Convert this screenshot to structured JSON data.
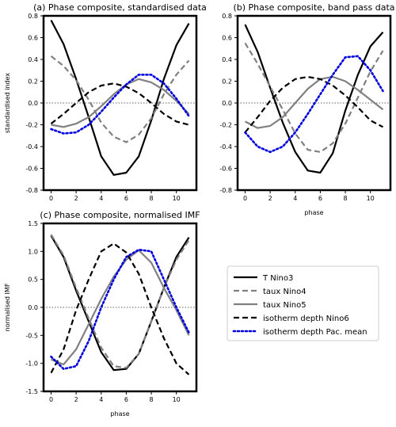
{
  "chart_data": [
    {
      "type": "line",
      "title": "(a) Phase composite, standardised data",
      "xlabel": "",
      "ylabel": "standardised index",
      "xlim": [
        -0.6,
        11.6
      ],
      "ylim": [
        -0.8,
        0.8
      ],
      "xticks": [
        0,
        2,
        4,
        6,
        8,
        10
      ],
      "yticks": [
        -0.8,
        -0.6,
        -0.4,
        -0.2,
        0.0,
        0.2,
        0.4,
        0.6,
        0.8
      ],
      "x": [
        0,
        1,
        2,
        3,
        4,
        5,
        6,
        7,
        8,
        9,
        10,
        11
      ],
      "series": [
        {
          "name": "T Nino3",
          "color": "#000000",
          "dash": "solid",
          "values": [
            0.76,
            0.54,
            0.22,
            -0.13,
            -0.49,
            -0.66,
            -0.64,
            -0.49,
            -0.16,
            0.22,
            0.53,
            0.73
          ]
        },
        {
          "name": "taux Nino4",
          "color": "#808080",
          "dash": "dashed",
          "values": [
            0.43,
            0.34,
            0.21,
            0.03,
            -0.18,
            -0.31,
            -0.36,
            -0.29,
            -0.14,
            0.08,
            0.26,
            0.39
          ]
        },
        {
          "name": "taux Nino5",
          "color": "#808080",
          "dash": "solid",
          "values": [
            -0.2,
            -0.22,
            -0.19,
            -0.13,
            -0.03,
            0.08,
            0.17,
            0.22,
            0.19,
            0.12,
            0.02,
            -0.1
          ]
        },
        {
          "name": "isotherm depth Nino6",
          "color": "#000000",
          "dash": "dashed",
          "values": [
            -0.19,
            -0.1,
            0.0,
            0.1,
            0.16,
            0.18,
            0.15,
            0.09,
            0.0,
            -0.1,
            -0.17,
            -0.2
          ]
        },
        {
          "name": "isotherm depth Pac. mean",
          "color": "#0000dd",
          "dash": "dotted",
          "values": [
            -0.24,
            -0.28,
            -0.27,
            -0.2,
            -0.08,
            0.05,
            0.17,
            0.26,
            0.26,
            0.18,
            0.04,
            -0.12
          ]
        }
      ]
    },
    {
      "type": "line",
      "title": "(b) Phase composite, band pass data",
      "xlabel": "phase",
      "ylabel": "",
      "xlim": [
        -0.6,
        11.6
      ],
      "ylim": [
        -0.8,
        0.8
      ],
      "xticks": [
        0,
        2,
        4,
        6,
        8,
        10
      ],
      "yticks": [
        -0.8,
        -0.6,
        -0.4,
        -0.2,
        0.0,
        0.2,
        0.4,
        0.6,
        0.8
      ],
      "x": [
        0,
        1,
        2,
        3,
        4,
        5,
        6,
        7,
        8,
        9,
        10,
        11
      ],
      "series": [
        {
          "name": "T Nino3",
          "color": "#000000",
          "dash": "solid",
          "values": [
            0.72,
            0.47,
            0.14,
            -0.18,
            -0.45,
            -0.62,
            -0.64,
            -0.46,
            -0.07,
            0.26,
            0.52,
            0.65
          ]
        },
        {
          "name": "taux Nino4",
          "color": "#808080",
          "dash": "dashed",
          "values": [
            0.55,
            0.36,
            0.15,
            -0.06,
            -0.28,
            -0.43,
            -0.45,
            -0.37,
            -0.19,
            0.05,
            0.29,
            0.48
          ]
        },
        {
          "name": "taux Nino5",
          "color": "#808080",
          "dash": "solid",
          "values": [
            -0.17,
            -0.23,
            -0.21,
            -0.13,
            0.0,
            0.13,
            0.22,
            0.24,
            0.2,
            0.12,
            0.03,
            -0.06
          ]
        },
        {
          "name": "isotherm depth Nino6",
          "color": "#000000",
          "dash": "dashed",
          "values": [
            -0.27,
            -0.13,
            0.02,
            0.14,
            0.22,
            0.24,
            0.22,
            0.16,
            0.07,
            -0.04,
            -0.16,
            -0.22
          ]
        },
        {
          "name": "isotherm depth Pac. mean",
          "color": "#0000dd",
          "dash": "dotted",
          "values": [
            -0.27,
            -0.4,
            -0.45,
            -0.4,
            -0.27,
            -0.1,
            0.08,
            0.26,
            0.42,
            0.43,
            0.3,
            0.11
          ]
        }
      ]
    },
    {
      "type": "line",
      "title": "(c) Phase composite, normalised IMF",
      "xlabel": "phase",
      "ylabel": "normalised IMF",
      "xlim": [
        -0.6,
        11.6
      ],
      "ylim": [
        -1.5,
        1.5
      ],
      "xticks": [
        0,
        2,
        4,
        6,
        8,
        10
      ],
      "yticks": [
        -1.5,
        -1.0,
        -0.5,
        0.0,
        0.5,
        1.0,
        1.5
      ],
      "x": [
        0,
        1,
        2,
        3,
        4,
        5,
        6,
        7,
        8,
        9,
        10,
        11
      ],
      "series": [
        {
          "name": "T Nino3",
          "color": "#000000",
          "dash": "solid",
          "values": [
            1.28,
            0.9,
            0.3,
            -0.25,
            -0.8,
            -1.12,
            -1.1,
            -0.83,
            -0.25,
            0.35,
            0.9,
            1.25
          ]
        },
        {
          "name": "taux Nino4",
          "color": "#808080",
          "dash": "dashed",
          "values": [
            1.3,
            0.93,
            0.35,
            -0.2,
            -0.72,
            -1.05,
            -1.08,
            -0.83,
            -0.25,
            0.35,
            0.85,
            1.2
          ]
        },
        {
          "name": "taux Nino5",
          "color": "#808080",
          "dash": "solid",
          "values": [
            -0.93,
            -1.02,
            -0.75,
            -0.3,
            0.15,
            0.55,
            0.85,
            1.02,
            0.8,
            0.35,
            -0.05,
            -0.5
          ]
        },
        {
          "name": "isotherm depth Nino6",
          "color": "#000000",
          "dash": "dashed",
          "values": [
            -1.17,
            -0.75,
            -0.05,
            0.5,
            1.0,
            1.14,
            0.98,
            0.6,
            0.0,
            -0.55,
            -1.0,
            -1.2
          ]
        },
        {
          "name": "isotherm depth Pac. mean",
          "color": "#0000dd",
          "dash": "dotted",
          "values": [
            -0.88,
            -1.1,
            -1.05,
            -0.6,
            0.0,
            0.5,
            0.9,
            1.03,
            1.0,
            0.5,
            0.0,
            -0.45
          ]
        }
      ]
    }
  ],
  "legend": {
    "placement": "right of panel (c)",
    "entries": [
      "T Nino3",
      "taux Nino4",
      "taux Nino5",
      "isotherm depth Nino6",
      "isotherm depth Pac. mean"
    ]
  }
}
